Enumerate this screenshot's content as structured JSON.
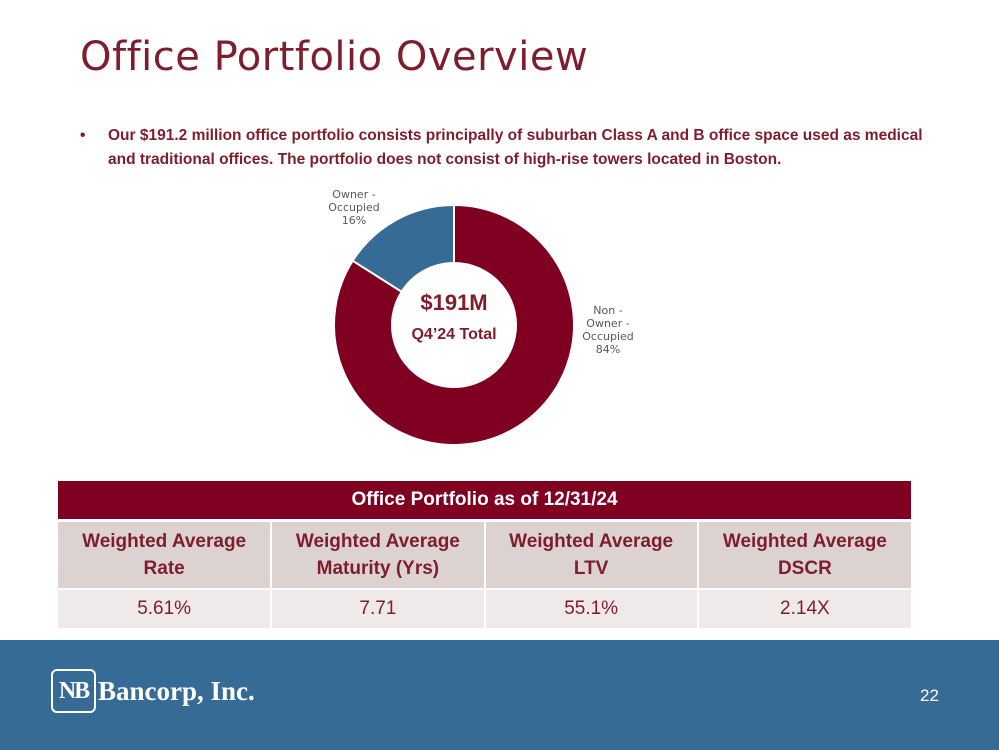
{
  "title": "Office Portfolio Overview",
  "bullet": {
    "marker": "•",
    "text": "Our $191.2 million office portfolio consists principally of suburban Class A and B office space used as medical and traditional offices. The portfolio does not consist of high-rise towers located in Boston."
  },
  "chart_data": {
    "type": "pie",
    "variant": "donut",
    "center_value": "$191M",
    "center_label": "Q4’24 Total",
    "slices": [
      {
        "label": "Non - Owner - Occupied",
        "label_lines": [
          "Non -",
          "Owner -",
          "Occupied"
        ],
        "value": 84,
        "display": "84%",
        "color": "#7f0020"
      },
      {
        "label": "Owner - Occupied",
        "label_lines": [
          "Owner -",
          "Occupied"
        ],
        "value": 16,
        "display": "16%",
        "color": "#366b96"
      }
    ]
  },
  "table": {
    "caption": "Office Portfolio as of 12/31/24",
    "headers": [
      [
        "Weighted Average",
        "Rate"
      ],
      [
        "Weighted Average",
        "Maturity (Yrs)"
      ],
      [
        "Weighted Average",
        "LTV"
      ],
      [
        "Weighted Average",
        "DSCR"
      ]
    ],
    "values": [
      "5.61%",
      "7.71",
      "55.1%",
      "2.14X"
    ]
  },
  "footer": {
    "logo_mark": "NB",
    "company": "Bancorp, Inc.",
    "page_number": "22"
  },
  "colors": {
    "brand_maroon": "#7f0020",
    "brand_blue": "#366b96"
  }
}
